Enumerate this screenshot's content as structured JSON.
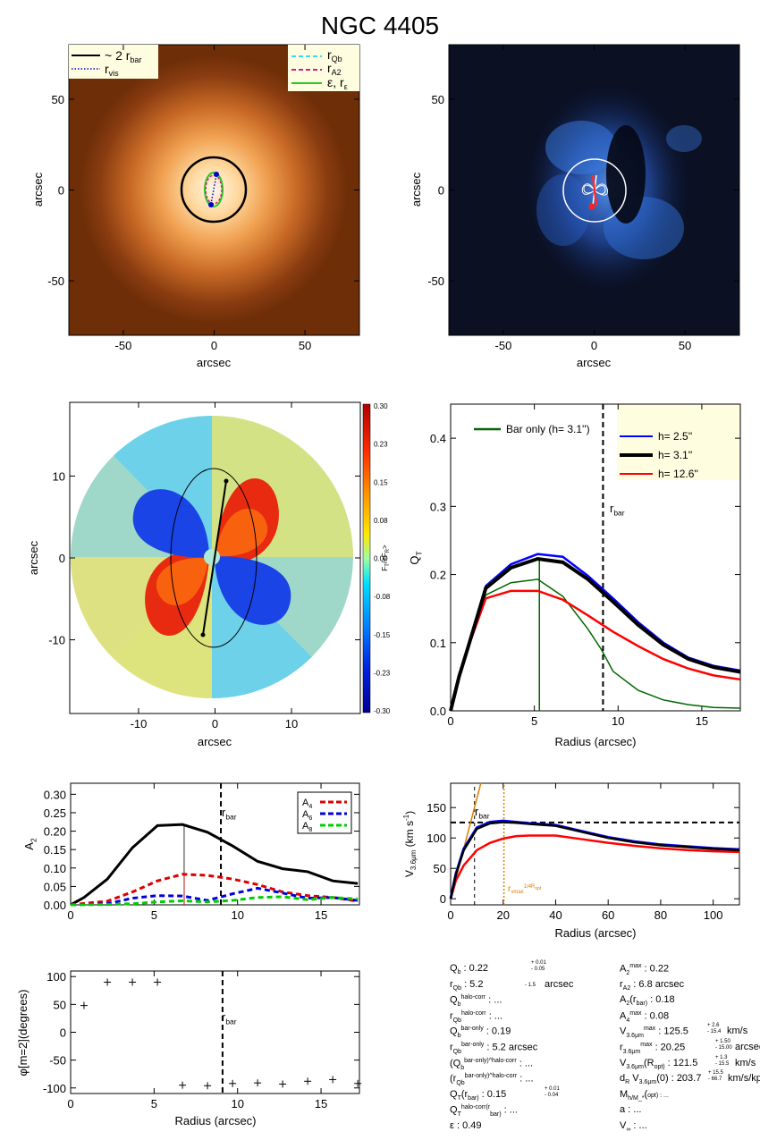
{
  "title": "NGC 4405",
  "chart_data": [
    {
      "type": "image",
      "name": "galaxy-image",
      "xlabel": "arcsec",
      "ylabel": "arcsec",
      "xlim": [
        -80,
        80
      ],
      "ylim": [
        -80,
        80
      ],
      "xticks": [
        -50,
        0,
        50
      ],
      "yticks": [
        -50,
        0,
        50
      ],
      "legend_left": [
        {
          "label": "~ 2 r_bar",
          "color": "#000000",
          "style": "solid"
        },
        {
          "label": "r_vis",
          "color": "#0000cc",
          "style": "dotted"
        }
      ],
      "legend_right": [
        {
          "label": "r_Qb",
          "color": "#33ddee",
          "style": "dashed"
        },
        {
          "label": "r_A2",
          "color": "#cc2288",
          "style": "dashed"
        },
        {
          "label": "ε, r_ε",
          "color": "#22cc22",
          "style": "solid"
        }
      ]
    },
    {
      "type": "image",
      "name": "residual-image",
      "xlabel": "arcsec",
      "ylabel": "arcsec",
      "xlim": [
        -80,
        80
      ],
      "ylim": [
        -80,
        80
      ],
      "xticks": [
        -50,
        0,
        50
      ],
      "yticks": [
        -50,
        0,
        50
      ]
    },
    {
      "type": "heatmap",
      "name": "force-ratio-map",
      "xlabel": "arcsec",
      "ylabel": "arcsec",
      "xlim": [
        -19,
        19
      ],
      "ylim": [
        -19,
        19
      ],
      "xticks": [
        -10,
        0,
        10
      ],
      "yticks": [
        -10,
        0,
        10
      ],
      "colorbar_label": "F_T/<F_R>",
      "colorbar_ticks": [
        "0.30",
        "0.23",
        "0.15",
        "0.08",
        "0.00",
        "-0.08",
        "-0.15",
        "-0.23",
        "-0.30"
      ]
    },
    {
      "type": "line",
      "name": "qt-profile",
      "xlabel": "Radius (arcsec)",
      "ylabel": "Q_T",
      "xlim": [
        0,
        17.3
      ],
      "ylim": [
        0,
        0.45
      ],
      "xticks": [
        0,
        5,
        10,
        15
      ],
      "yticks": [
        "0.0",
        "0.1",
        "0.2",
        "0.3",
        "0.4"
      ],
      "vline_label": "r_bar",
      "vline_x": 9.1,
      "peak_x": 5.3,
      "series": [
        {
          "name": "h_z=  2.5''",
          "color": "#0000ff",
          "x": [
            0,
            0.5,
            1,
            2.1,
            3.6,
            5.2,
            6.7,
            8.2,
            9.7,
            11.2,
            12.7,
            14.2,
            15.7,
            17.3
          ],
          "y": [
            0,
            0.05,
            0.09,
            0.183,
            0.215,
            0.23,
            0.226,
            0.198,
            0.165,
            0.13,
            0.1,
            0.078,
            0.066,
            0.059
          ]
        },
        {
          "name": "h_z=  3.1''",
          "color": "#000000",
          "x": [
            0,
            0.5,
            1,
            2.1,
            3.6,
            5.2,
            6.7,
            8.2,
            9.7,
            11.2,
            12.7,
            14.2,
            15.7,
            17.3
          ],
          "y": [
            0,
            0.05,
            0.09,
            0.18,
            0.21,
            0.223,
            0.218,
            0.193,
            0.16,
            0.126,
            0.097,
            0.076,
            0.064,
            0.057
          ]
        },
        {
          "name": "h_z= 12.6''",
          "color": "#ff0000",
          "x": [
            0,
            0.5,
            1,
            2.1,
            3.6,
            5.2,
            6.7,
            8.2,
            9.7,
            11.2,
            12.7,
            14.2,
            15.7,
            17.3
          ],
          "y": [
            0,
            0.05,
            0.09,
            0.165,
            0.176,
            0.176,
            0.163,
            0.14,
            0.116,
            0.095,
            0.076,
            0.062,
            0.052,
            0.046
          ]
        },
        {
          "name": "Bar only (h_z=  3.1'')",
          "color": "#006600",
          "x": [
            0,
            0.5,
            1,
            2.1,
            3.6,
            5.2,
            6.7,
            8.2,
            9.0,
            9.7,
            11.2,
            12.7,
            14.2,
            15.7,
            17.3
          ],
          "y": [
            0,
            0.05,
            0.09,
            0.17,
            0.188,
            0.193,
            0.168,
            0.12,
            0.09,
            0.058,
            0.03,
            0.016,
            0.009,
            0.005,
            0.004
          ]
        }
      ]
    },
    {
      "type": "line",
      "name": "fourier-amplitudes",
      "xlabel": "",
      "ylabel": "A_2",
      "xlim": [
        0,
        17.3
      ],
      "ylim": [
        0,
        0.33
      ],
      "xticks": [
        0,
        5,
        10,
        15
      ],
      "yticks": [
        "0.00",
        "0.05",
        "0.10",
        "0.15",
        "0.20",
        "0.25",
        "0.30"
      ],
      "vline_label": "r_bar",
      "vline_x": 9.0,
      "peak_x": 6.8,
      "series": [
        {
          "name": "A_2",
          "color": "#000000",
          "x": [
            0,
            0.8,
            2.2,
            3.7,
            5.2,
            6.7,
            8.2,
            9.7,
            11.2,
            12.7,
            14.2,
            15.7,
            17.2
          ],
          "y": [
            0,
            0.02,
            0.07,
            0.155,
            0.215,
            0.218,
            0.197,
            0.16,
            0.118,
            0.098,
            0.09,
            0.065,
            0.058
          ]
        },
        {
          "name": "A_4",
          "color": "#dd0000",
          "x": [
            0,
            2.2,
            3.7,
            5.2,
            6.7,
            8.2,
            9.7,
            11.2,
            12.7,
            14.2,
            15.7,
            17.2
          ],
          "y": [
            0,
            0.01,
            0.035,
            0.065,
            0.083,
            0.08,
            0.07,
            0.055,
            0.035,
            0.025,
            0.02,
            0.01
          ]
        },
        {
          "name": "A_6",
          "color": "#0000dd",
          "x": [
            0,
            2.2,
            3.7,
            5.2,
            6.7,
            8.2,
            9.7,
            11.2,
            12.7,
            14.2,
            15.7,
            17.2
          ],
          "y": [
            0,
            0.003,
            0.018,
            0.025,
            0.024,
            0.012,
            0.03,
            0.045,
            0.032,
            0.018,
            0.02,
            0.012
          ]
        },
        {
          "name": "A_8",
          "color": "#00cc00",
          "x": [
            0,
            2.2,
            3.7,
            5.2,
            6.7,
            8.2,
            9.7,
            11.2,
            12.7,
            14.2,
            15.7,
            17.2
          ],
          "y": [
            0,
            0.001,
            0.003,
            0.008,
            0.011,
            0.008,
            0.012,
            0.02,
            0.022,
            0.014,
            0.02,
            0.016
          ]
        }
      ],
      "legend": [
        "A_4",
        "A_6",
        "A_8"
      ]
    },
    {
      "type": "line",
      "name": "rotation-curve",
      "xlabel": "Radius (arcsec)",
      "ylabel": "V_3.6μm (km s^-1)",
      "xlim": [
        0,
        110
      ],
      "ylim": [
        -10,
        190
      ],
      "xticks": [
        0,
        20,
        40,
        60,
        80,
        100
      ],
      "yticks": [
        0,
        50,
        100,
        150
      ],
      "vline_label": "r_bar",
      "vline_x": 9.1,
      "vline2_label": "r_vmax^(1/4 R_opt)",
      "vline2_x": 20.3,
      "hline_y": 125.5,
      "series": [
        {
          "name": "black",
          "color": "#000000",
          "x": [
            0,
            2,
            5,
            10,
            15,
            20,
            25,
            30,
            40,
            50,
            60,
            70,
            80,
            90,
            100,
            110
          ],
          "y": [
            0,
            40,
            80,
            115,
            124,
            126,
            125,
            123,
            120,
            110,
            100,
            93,
            88,
            85,
            82,
            80
          ]
        },
        {
          "name": "blue",
          "color": "#0000ff",
          "x": [
            0,
            2,
            5,
            10,
            15,
            20,
            25,
            30,
            40,
            50,
            60,
            70,
            80,
            90,
            100,
            110
          ],
          "y": [
            0,
            41,
            82,
            117,
            126,
            128,
            126,
            124,
            121,
            111,
            101,
            94,
            89,
            86,
            83,
            81
          ]
        },
        {
          "name": "red",
          "color": "#ff0000",
          "x": [
            0,
            2,
            5,
            10,
            15,
            20,
            25,
            30,
            40,
            50,
            60,
            70,
            80,
            90,
            100,
            110
          ],
          "y": [
            0,
            30,
            55,
            80,
            92,
            99,
            103,
            104,
            104,
            98,
            92,
            87,
            83,
            80,
            78,
            77
          ]
        }
      ]
    },
    {
      "type": "scatter",
      "name": "phase-profile",
      "xlabel": "Radius (arcsec)",
      "ylabel": "φ[m=2](degrees)",
      "xlim": [
        0,
        17.3
      ],
      "ylim": [
        -110,
        110
      ],
      "xticks": [
        0,
        5,
        10,
        15
      ],
      "yticks": [
        -100,
        -50,
        0,
        50,
        100
      ],
      "vline_label": "r_bar",
      "vline_x": 9.1,
      "x": [
        0.8,
        2.2,
        3.7,
        5.2,
        6.7,
        8.2,
        9.7,
        11.2,
        12.7,
        14.2,
        15.7,
        17.2
      ],
      "y": [
        48,
        90,
        90,
        90,
        -95,
        -96,
        -92,
        -91,
        -93,
        -88,
        -85,
        -92
      ]
    }
  ],
  "params": {
    "left": [
      "Q_b :  0.22",
      "r_Qb :   5.2",
      "Q_b^halo-corr : ...",
      "r_Qb^halo-corr : ...",
      "Q_b^bar-only :  0.19",
      "r_Qb^bar-only :  5.2 arcsec",
      "(Q_b^bar-only)^halo-corr : ...",
      "(r_Qb^bar-only)^halo-corr : ...",
      "Q_T(r_bar) :  0.15",
      "Q_T^halo-corr(r_bar) : ...",
      "ε :  0.49"
    ],
    "right": [
      "A_2^max :  0.22",
      "r_A2 :   6.8 arcsec",
      "A_2(r_bar) :  0.18",
      "A_4^max :  0.08",
      "V_3.6μm^max :  125.5",
      "r_3.6μm^max :  20.25",
      "V_3.6μm(R_opt) :  121.5",
      "d_R V_3.6μm(0) :  203.7",
      "M_h/M_*(<R_opt) : ...",
      "a : ...",
      "V_∞ : ..."
    ],
    "pm": {
      "qb": [
        "+ 0.01",
        "- 0.05"
      ],
      "rqb": [
        "",
        "- 1.5"
      ],
      "qt": [
        "+ 0.01",
        "- 0.04"
      ],
      "vmax": [
        "+ 2.6",
        "- 15.4"
      ],
      "rmax": [
        "+ 1.50",
        "- 15.00"
      ],
      "vopt": [
        "+ 1.3",
        "- 15.5"
      ],
      "dr": [
        "+ 15.5",
        "- 66.7"
      ]
    },
    "units": {
      "rqb": "arcsec",
      "vmax": "km/s",
      "rmax": "arcsec",
      "vopt": "km/s",
      "dr": "km/s/kpc"
    }
  }
}
